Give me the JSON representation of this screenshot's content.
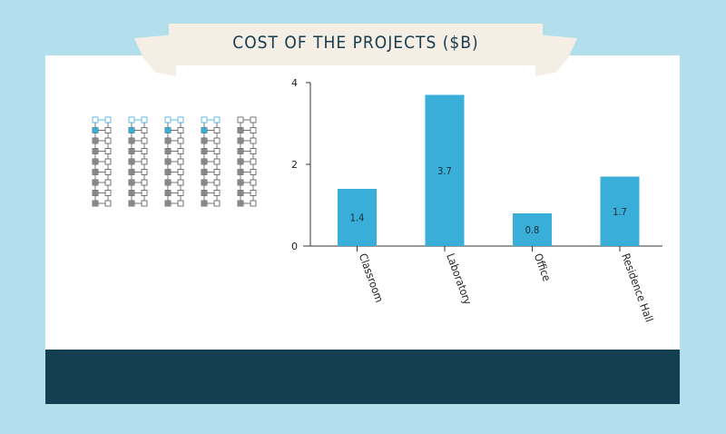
{
  "banner": {
    "title": "COST OF THE PROJECTS ($B)"
  },
  "colors": {
    "background": "#b2dfeb",
    "bar": "#39aed9",
    "footer": "#143f52",
    "banner": "#f4eee4",
    "icon_highlight": "#39aed9",
    "icon_default": "#888888"
  },
  "icons": {
    "name": "building-icon",
    "columns": 5,
    "highlighted_columns": 4
  },
  "chart_data": {
    "type": "bar",
    "title": "COST OF THE PROJECTS ($B)",
    "categories": [
      "Classroom",
      "Laboratory",
      "Office",
      "Residence Hall"
    ],
    "values": [
      1.4,
      3.7,
      0.8,
      1.7
    ],
    "data_labels": [
      "1.4",
      "3.7",
      "0.8",
      "1.7"
    ],
    "yticks": [
      "0",
      "2",
      "4"
    ],
    "ylim": [
      0,
      4
    ],
    "xlabel": "",
    "ylabel": "",
    "grid": false,
    "legend": "none"
  }
}
